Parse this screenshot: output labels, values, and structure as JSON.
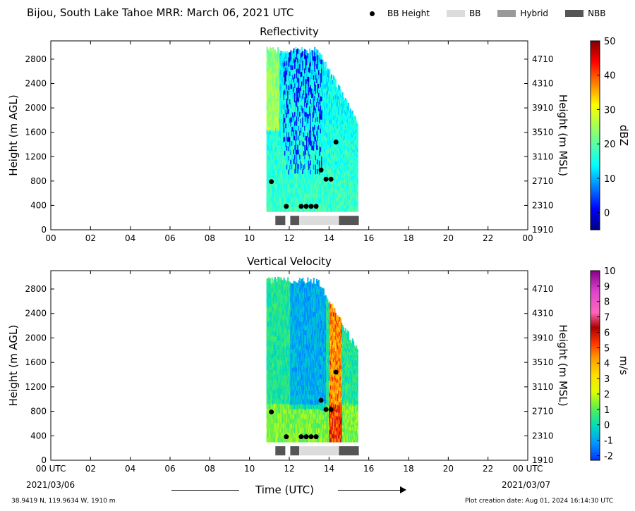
{
  "header": {
    "title": "Bijou, South Lake Tahoe MRR:  March 06, 2021 UTC"
  },
  "legend": [
    {
      "label": "BB Height",
      "kind": "dot",
      "color": "#000000"
    },
    {
      "label": "BB",
      "kind": "swatch",
      "color": "#dcdcdc"
    },
    {
      "label": "Hybrid",
      "kind": "swatch",
      "color": "#999999"
    },
    {
      "label": "NBB",
      "kind": "swatch",
      "color": "#555555"
    }
  ],
  "bottom_axis": {
    "left_date": "2021/03/06",
    "right_date": "2021/03/07",
    "xlabel": "Time (UTC)"
  },
  "footer": {
    "location": "38.9419 N, 119.9634 W, 1910 m",
    "creation_date": "Plot creation date: Aug 01, 2024 16:14:30 UTC"
  },
  "chart_data": [
    {
      "type": "heatmap",
      "title": "Reflectivity",
      "ylabel": "Height (m AGL)",
      "ylabel_right": "Height (m MSL)",
      "xlim": [
        0,
        24
      ],
      "ylim": [
        0,
        3100
      ],
      "x_ticks": [
        "00",
        "02",
        "04",
        "06",
        "08",
        "10",
        "12",
        "14",
        "16",
        "18",
        "20",
        "22",
        "00"
      ],
      "y_ticks": [
        0,
        400,
        800,
        1200,
        1600,
        2000,
        2400,
        2800
      ],
      "y_ticks_right": [
        "1910",
        "2310",
        "2710",
        "3110",
        "3510",
        "3910",
        "4310",
        "4710"
      ],
      "colorbar": {
        "label": "dBZ",
        "min": -5,
        "max": 50,
        "ticks": [
          "0",
          "10",
          "20",
          "30",
          "40",
          "50"
        ],
        "tick_values": [
          0,
          10,
          20,
          30,
          40,
          50
        ],
        "colormap": "jet"
      },
      "data_extent": {
        "x_start": 10.85,
        "x_end": 15.45,
        "y_start": 300,
        "y_end": 3000
      },
      "bb_height_points": [
        {
          "x": 11.1,
          "y": 790
        },
        {
          "x": 11.85,
          "y": 385
        },
        {
          "x": 12.6,
          "y": 385
        },
        {
          "x": 12.85,
          "y": 385
        },
        {
          "x": 13.1,
          "y": 385
        },
        {
          "x": 13.35,
          "y": 385
        },
        {
          "x": 13.6,
          "y": 980
        },
        {
          "x": 13.85,
          "y": 830
        },
        {
          "x": 14.1,
          "y": 830
        },
        {
          "x": 14.35,
          "y": 1440
        }
      ],
      "bb_type_segments": [
        {
          "start": 11.3,
          "end": 11.8,
          "type": "NBB"
        },
        {
          "start": 12.05,
          "end": 12.5,
          "type": "NBB"
        },
        {
          "start": 12.5,
          "end": 14.5,
          "type": "BB"
        },
        {
          "start": 14.5,
          "end": 15.5,
          "type": "NBB"
        }
      ]
    },
    {
      "type": "heatmap",
      "title": "Vertical Velocity",
      "ylabel": "Height (m AGL)",
      "ylabel_right": "Height (m MSL)",
      "xlim": [
        0,
        24
      ],
      "ylim": [
        0,
        3100
      ],
      "x_ticks": [
        "00 UTC",
        "02",
        "04",
        "06",
        "08",
        "10",
        "12",
        "14",
        "16",
        "18",
        "20",
        "22",
        "00 UTC"
      ],
      "y_ticks": [
        0,
        400,
        800,
        1200,
        1600,
        2000,
        2400,
        2800
      ],
      "y_ticks_right": [
        "1910",
        "2310",
        "2710",
        "3110",
        "3510",
        "3910",
        "4310",
        "4710"
      ],
      "colorbar": {
        "label": "m/s",
        "min": -2.3,
        "max": 10,
        "ticks": [
          "-2",
          "-1",
          "0",
          "1",
          "2",
          "3",
          "4",
          "5",
          "6",
          "7",
          "8",
          "9",
          "10"
        ],
        "tick_values": [
          -2,
          -1,
          0,
          1,
          2,
          3,
          4,
          5,
          6,
          7,
          8,
          9,
          10
        ],
        "colormap": "velocity"
      },
      "data_extent": {
        "x_start": 10.85,
        "x_end": 15.45,
        "y_start": 300,
        "y_end": 3000
      },
      "bb_height_points": [
        {
          "x": 11.1,
          "y": 790
        },
        {
          "x": 11.85,
          "y": 385
        },
        {
          "x": 12.6,
          "y": 385
        },
        {
          "x": 12.85,
          "y": 385
        },
        {
          "x": 13.1,
          "y": 385
        },
        {
          "x": 13.35,
          "y": 385
        },
        {
          "x": 13.6,
          "y": 980
        },
        {
          "x": 13.85,
          "y": 830
        },
        {
          "x": 14.1,
          "y": 830
        },
        {
          "x": 14.35,
          "y": 1440
        }
      ],
      "bb_type_segments": [
        {
          "start": 11.3,
          "end": 11.8,
          "type": "NBB"
        },
        {
          "start": 12.05,
          "end": 12.5,
          "type": "NBB"
        },
        {
          "start": 12.5,
          "end": 14.5,
          "type": "BB"
        },
        {
          "start": 14.5,
          "end": 15.5,
          "type": "NBB"
        }
      ]
    }
  ]
}
